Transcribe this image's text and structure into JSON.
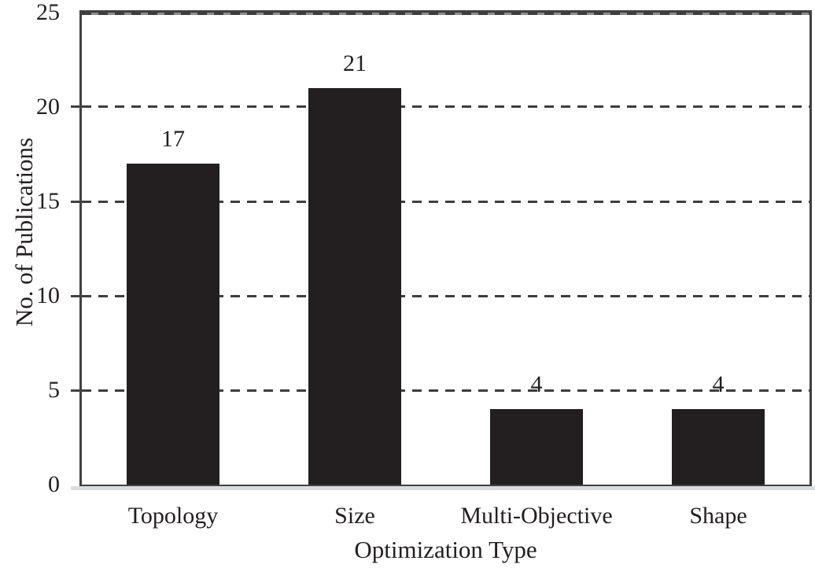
{
  "chart_data": {
    "type": "bar",
    "categories": [
      "Topology",
      "Size",
      "Multi-Objective",
      "Shape"
    ],
    "values": [
      17,
      21,
      4,
      4
    ],
    "value_labels": [
      "17",
      "21",
      "4",
      "4"
    ],
    "title": "",
    "xlabel": "Optimization Type",
    "ylabel": "No. of Publications",
    "ylim": [
      0,
      25
    ],
    "yticks": [
      0,
      5,
      10,
      15,
      20,
      25
    ],
    "grid": "horizontal-dashed",
    "legend": "none",
    "colors": {
      "bar": "#231f20",
      "axis": "#414042",
      "gridline": "#3d3d3f",
      "text": "#231f20",
      "baseline_band": "#d9dde1"
    }
  }
}
